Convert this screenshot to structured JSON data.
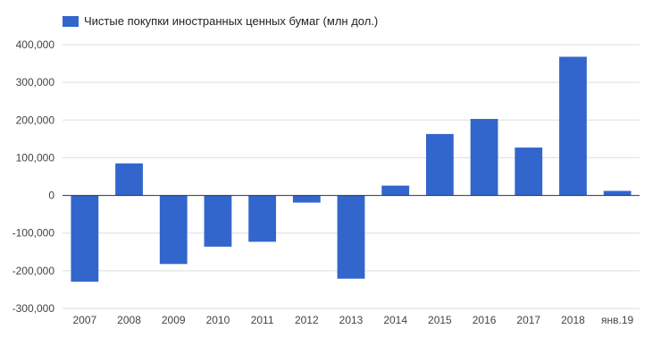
{
  "legend": {
    "label": "Чистые покупки иностранных ценных бумаг (млн дол.)",
    "color": "#3366cc"
  },
  "chart_data": {
    "type": "bar",
    "categories": [
      "2007",
      "2008",
      "2009",
      "2010",
      "2011",
      "2012",
      "2013",
      "2014",
      "2015",
      "2016",
      "2017",
      "2018",
      "янв.19"
    ],
    "series": [
      {
        "name": "Чистые покупки иностранных ценных бумаг (млн дол.)",
        "values": [
          -229000,
          85000,
          -182000,
          -136000,
          -123000,
          -19000,
          -221000,
          26000,
          163000,
          203000,
          127000,
          368000,
          12000
        ]
      }
    ],
    "ylim": [
      -300000,
      400000
    ],
    "yticks": [
      -300000,
      -200000,
      -100000,
      0,
      100000,
      200000,
      300000,
      400000
    ],
    "ytick_labels": [
      "-300,000",
      "-200,000",
      "-100,000",
      "0",
      "100,000",
      "200,000",
      "300,000",
      "400,000"
    ],
    "grid": true,
    "legend_position": "top-left",
    "bar_color": "#3366cc",
    "grid_color": "#dddddd",
    "zero_line_color": "#333333"
  }
}
